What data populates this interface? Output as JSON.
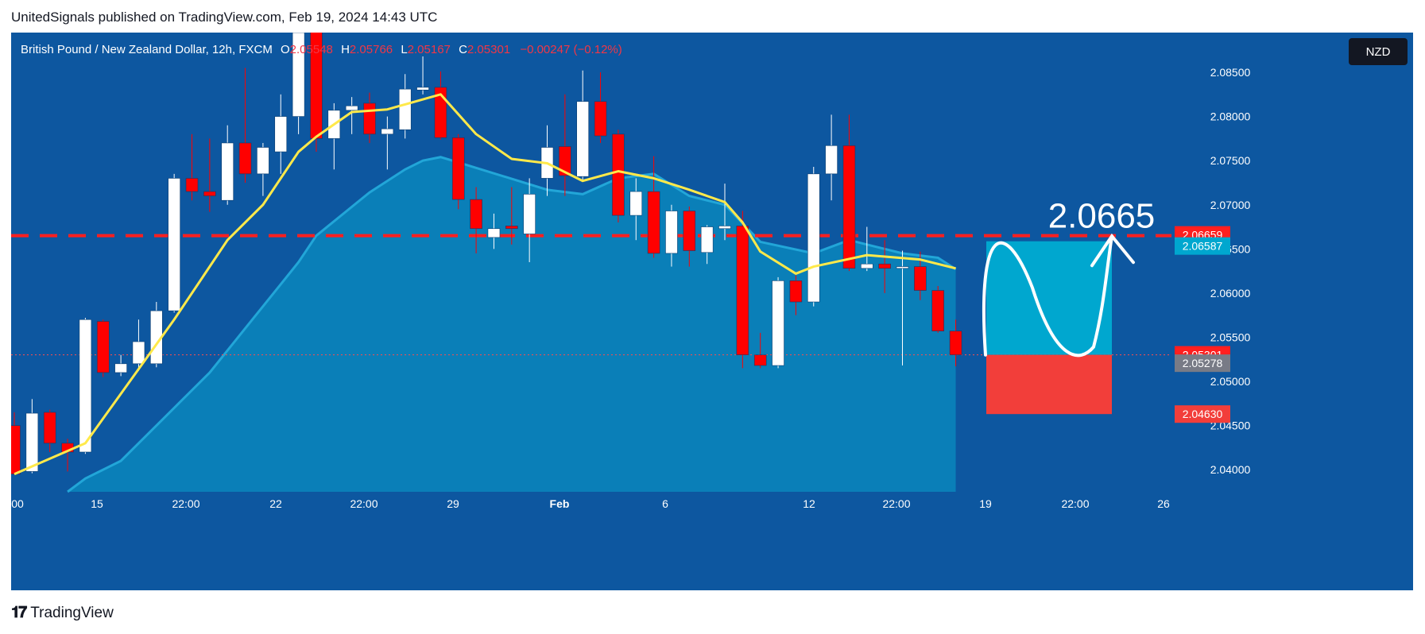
{
  "header": {
    "publication": "UnitedSignals published on TradingView.com, Feb 19, 2024 14:43 UTC"
  },
  "legend": {
    "symbol": "British Pound / New Zealand Dollar, 12h, FXCM",
    "open_label": "O",
    "open": "2.05548",
    "high_label": "H",
    "high": "2.05766",
    "low_label": "L",
    "low": "2.05167",
    "close_label": "C",
    "close": "2.05301",
    "change": "−0.00247 (−0.12%)"
  },
  "currency": "NZD",
  "footer": {
    "brand": "TradingView",
    "logo_icon": "tradingview-logo-icon"
  },
  "colors": {
    "background": "#0d57a0",
    "up_candle": "#ffffff",
    "down_candle": "#ff0000",
    "ma_fast": "#ffe94a",
    "area": "#0a86bc",
    "resistance": "#ff1f1f",
    "target_zone": "#00a7cf",
    "stop_zone": "#f23e3a"
  },
  "chart_data": {
    "type": "candlestick",
    "ylim": [
      2.0375,
      2.0895
    ],
    "y_ticks": [
      "2.04000",
      "2.04500",
      "2.05000",
      "2.05500",
      "2.06000",
      "2.06500",
      "2.07000",
      "2.07500",
      "2.08000",
      "2.08500"
    ],
    "x_ticks": [
      "00",
      "15",
      "22:00",
      "22",
      "22:00",
      "29",
      "Feb",
      "6",
      "12",
      "22:00",
      "19",
      "22:00",
      "26"
    ],
    "candles": [
      {
        "o": 2.045,
        "h": 2.0465,
        "l": 2.0395,
        "c": 2.0395
      },
      {
        "o": 2.0398,
        "h": 2.048,
        "l": 2.0396,
        "c": 2.0464
      },
      {
        "o": 2.0465,
        "h": 2.0468,
        "l": 2.042,
        "c": 2.043
      },
      {
        "o": 2.043,
        "h": 2.0435,
        "l": 2.0398,
        "c": 2.042
      },
      {
        "o": 2.042,
        "h": 2.0572,
        "l": 2.0418,
        "c": 2.057
      },
      {
        "o": 2.0568,
        "h": 2.057,
        "l": 2.0505,
        "c": 2.051
      },
      {
        "o": 2.051,
        "h": 2.053,
        "l": 2.0506,
        "c": 2.052
      },
      {
        "o": 2.052,
        "h": 2.057,
        "l": 2.0512,
        "c": 2.0545
      },
      {
        "o": 2.052,
        "h": 2.059,
        "l": 2.0516,
        "c": 2.058
      },
      {
        "o": 2.058,
        "h": 2.0735,
        "l": 2.0578,
        "c": 2.073
      },
      {
        "o": 2.073,
        "h": 2.078,
        "l": 2.0705,
        "c": 2.0715
      },
      {
        "o": 2.0715,
        "h": 2.0775,
        "l": 2.0692,
        "c": 2.071
      },
      {
        "o": 2.0705,
        "h": 2.079,
        "l": 2.07,
        "c": 2.077
      },
      {
        "o": 2.077,
        "h": 2.0855,
        "l": 2.0725,
        "c": 2.0735
      },
      {
        "o": 2.0735,
        "h": 2.077,
        "l": 2.071,
        "c": 2.0765
      },
      {
        "o": 2.076,
        "h": 2.0825,
        "l": 2.0735,
        "c": 2.08
      },
      {
        "o": 2.08,
        "h": 2.0915,
        "l": 2.078,
        "c": 2.0895
      },
      {
        "o": 2.0915,
        "h": 2.093,
        "l": 2.076,
        "c": 2.0775
      },
      {
        "o": 2.0775,
        "h": 2.0815,
        "l": 2.074,
        "c": 2.0807
      },
      {
        "o": 2.0807,
        "h": 2.0822,
        "l": 2.078,
        "c": 2.0812
      },
      {
        "o": 2.0815,
        "h": 2.0827,
        "l": 2.077,
        "c": 2.078
      },
      {
        "o": 2.078,
        "h": 2.08,
        "l": 2.074,
        "c": 2.0786
      },
      {
        "o": 2.0785,
        "h": 2.0848,
        "l": 2.0775,
        "c": 2.0831
      },
      {
        "o": 2.083,
        "h": 2.0868,
        "l": 2.0825,
        "c": 2.0833
      },
      {
        "o": 2.0833,
        "h": 2.0851,
        "l": 2.0774,
        "c": 2.0776
      },
      {
        "o": 2.0776,
        "h": 2.078,
        "l": 2.0695,
        "c": 2.0706
      },
      {
        "o": 2.0706,
        "h": 2.072,
        "l": 2.0645,
        "c": 2.0673
      },
      {
        "o": 2.0663,
        "h": 2.069,
        "l": 2.065,
        "c": 2.0673
      },
      {
        "o": 2.0676,
        "h": 2.072,
        "l": 2.0655,
        "c": 2.0673
      },
      {
        "o": 2.0667,
        "h": 2.073,
        "l": 2.0635,
        "c": 2.0712
      },
      {
        "o": 2.073,
        "h": 2.079,
        "l": 2.071,
        "c": 2.0765
      },
      {
        "o": 2.0766,
        "h": 2.0825,
        "l": 2.071,
        "c": 2.0733
      },
      {
        "o": 2.0732,
        "h": 2.0852,
        "l": 2.0728,
        "c": 2.0817
      },
      {
        "o": 2.0817,
        "h": 2.085,
        "l": 2.077,
        "c": 2.0778
      },
      {
        "o": 2.078,
        "h": 2.0785,
        "l": 2.068,
        "c": 2.0688
      },
      {
        "o": 2.0688,
        "h": 2.073,
        "l": 2.066,
        "c": 2.0715
      },
      {
        "o": 2.0715,
        "h": 2.0755,
        "l": 2.064,
        "c": 2.0645
      },
      {
        "o": 2.0645,
        "h": 2.07,
        "l": 2.063,
        "c": 2.0693
      },
      {
        "o": 2.0693,
        "h": 2.0698,
        "l": 2.063,
        "c": 2.0648
      },
      {
        "o": 2.0646,
        "h": 2.0677,
        "l": 2.0633,
        "c": 2.0675
      },
      {
        "o": 2.0673,
        "h": 2.0724,
        "l": 2.066,
        "c": 2.0676
      },
      {
        "o": 2.0676,
        "h": 2.0693,
        "l": 2.0515,
        "c": 2.053
      },
      {
        "o": 2.053,
        "h": 2.0555,
        "l": 2.0515,
        "c": 2.0518
      },
      {
        "o": 2.0518,
        "h": 2.0618,
        "l": 2.0515,
        "c": 2.0614
      },
      {
        "o": 2.0614,
        "h": 2.062,
        "l": 2.0575,
        "c": 2.059
      },
      {
        "o": 2.059,
        "h": 2.0743,
        "l": 2.0585,
        "c": 2.0735
      },
      {
        "o": 2.0735,
        "h": 2.0802,
        "l": 2.0705,
        "c": 2.0767
      },
      {
        "o": 2.0767,
        "h": 2.0802,
        "l": 2.0625,
        "c": 2.0628
      },
      {
        "o": 2.0628,
        "h": 2.0675,
        "l": 2.0625,
        "c": 2.0633
      },
      {
        "o": 2.0633,
        "h": 2.066,
        "l": 2.06,
        "c": 2.0628
      },
      {
        "o": 2.0628,
        "h": 2.0648,
        "l": 2.0518,
        "c": 2.063
      },
      {
        "o": 2.063,
        "h": 2.0647,
        "l": 2.0592,
        "c": 2.0603
      },
      {
        "o": 2.0603,
        "h": 2.0608,
        "l": 2.0555,
        "c": 2.0557
      },
      {
        "o": 2.0557,
        "h": 2.057,
        "l": 2.0517,
        "c": 2.053
      }
    ],
    "ma_fast": [
      [
        0,
        2.0395
      ],
      [
        4,
        2.043
      ],
      [
        9,
        2.057
      ],
      [
        12,
        2.066
      ],
      [
        14,
        2.07
      ],
      [
        16,
        2.076
      ],
      [
        17,
        2.0777
      ],
      [
        19,
        2.0805
      ],
      [
        21,
        2.0808
      ],
      [
        24,
        2.0825
      ],
      [
        26,
        2.078
      ],
      [
        28,
        2.0752
      ],
      [
        30,
        2.0747
      ],
      [
        32,
        2.0727
      ],
      [
        34,
        2.0738
      ],
      [
        36,
        2.073
      ],
      [
        38,
        2.0717
      ],
      [
        40,
        2.0703
      ],
      [
        41,
        2.068
      ],
      [
        42,
        2.0647
      ],
      [
        44,
        2.0622
      ],
      [
        45,
        2.063
      ],
      [
        48,
        2.0643
      ],
      [
        51,
        2.0638
      ],
      [
        53,
        2.0628
      ]
    ],
    "area_line": [
      [
        3,
        2.0375
      ],
      [
        4,
        2.039
      ],
      [
        6,
        2.041
      ],
      [
        9,
        2.047
      ],
      [
        11,
        2.051
      ],
      [
        13,
        2.056
      ],
      [
        15,
        2.061
      ],
      [
        16,
        2.0635
      ],
      [
        17,
        2.0665
      ],
      [
        20,
        2.0714
      ],
      [
        22,
        2.074
      ],
      [
        23,
        2.075
      ],
      [
        24,
        2.0754
      ],
      [
        25,
        2.0748
      ],
      [
        30,
        2.0717
      ],
      [
        32,
        2.0712
      ],
      [
        34,
        2.073
      ],
      [
        36,
        2.0735
      ],
      [
        38,
        2.071
      ],
      [
        40,
        2.07
      ],
      [
        42,
        2.0658
      ],
      [
        45,
        2.0645
      ],
      [
        47,
        2.066
      ],
      [
        48,
        2.0655
      ],
      [
        50,
        2.0645
      ],
      [
        52,
        2.064
      ],
      [
        53,
        2.0627
      ]
    ],
    "resistance_level": 2.0665,
    "resistance_label": "2.0665",
    "target_zone": [
      2.05301,
      2.06587
    ],
    "stop_zone": [
      2.0463,
      2.05301
    ],
    "price_labels": [
      {
        "value": 2.06659,
        "text": "2.06659",
        "color": "#ff1f1f"
      },
      {
        "value": 2.06587,
        "text": "2.06587",
        "color": "#00a7cf"
      },
      {
        "value": 2.05301,
        "text": "2.05301",
        "color": "#ff1f1f"
      },
      {
        "value": 2.05278,
        "text": "2.05278",
        "color": "#787b86"
      },
      {
        "value": 2.0463,
        "text": "2.04630",
        "color": "#f23e3a"
      }
    ]
  }
}
